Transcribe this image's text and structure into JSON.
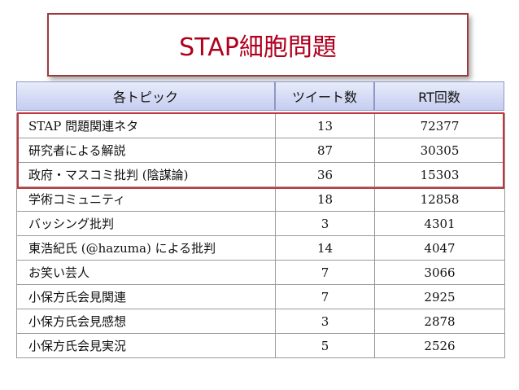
{
  "title": "STAP細胞問題",
  "table": {
    "headers": [
      "各トピック",
      "ツイート数",
      "RT回数"
    ],
    "rows": [
      {
        "topic": "STAP 問題関連ネタ",
        "tweets": "13",
        "rt": "72377"
      },
      {
        "topic": "研究者による解説",
        "tweets": "87",
        "rt": "30305"
      },
      {
        "topic": "政府・マスコミ批判 (陰謀論)",
        "tweets": "36",
        "rt": "15303"
      },
      {
        "topic": "学術コミュニティ",
        "tweets": "18",
        "rt": "12858"
      },
      {
        "topic": "バッシング批判",
        "tweets": "3",
        "rt": "4301"
      },
      {
        "topic": "東浩紀氏 (@hazuma) による批判",
        "tweets": "14",
        "rt": "4047"
      },
      {
        "topic": "お笑い芸人",
        "tweets": "7",
        "rt": "3066"
      },
      {
        "topic": "小保方氏会見関連",
        "tweets": "7",
        "rt": "2925"
      },
      {
        "topic": "小保方氏会見感想",
        "tweets": "3",
        "rt": "2878"
      },
      {
        "topic": "小保方氏会見実況",
        "tweets": "5",
        "rt": "2526"
      }
    ]
  },
  "colors": {
    "title_text": "#b0001e",
    "title_border": "#9b3b3b",
    "header_bg": "#c6cdf0",
    "highlight_border": "#c0383d"
  }
}
